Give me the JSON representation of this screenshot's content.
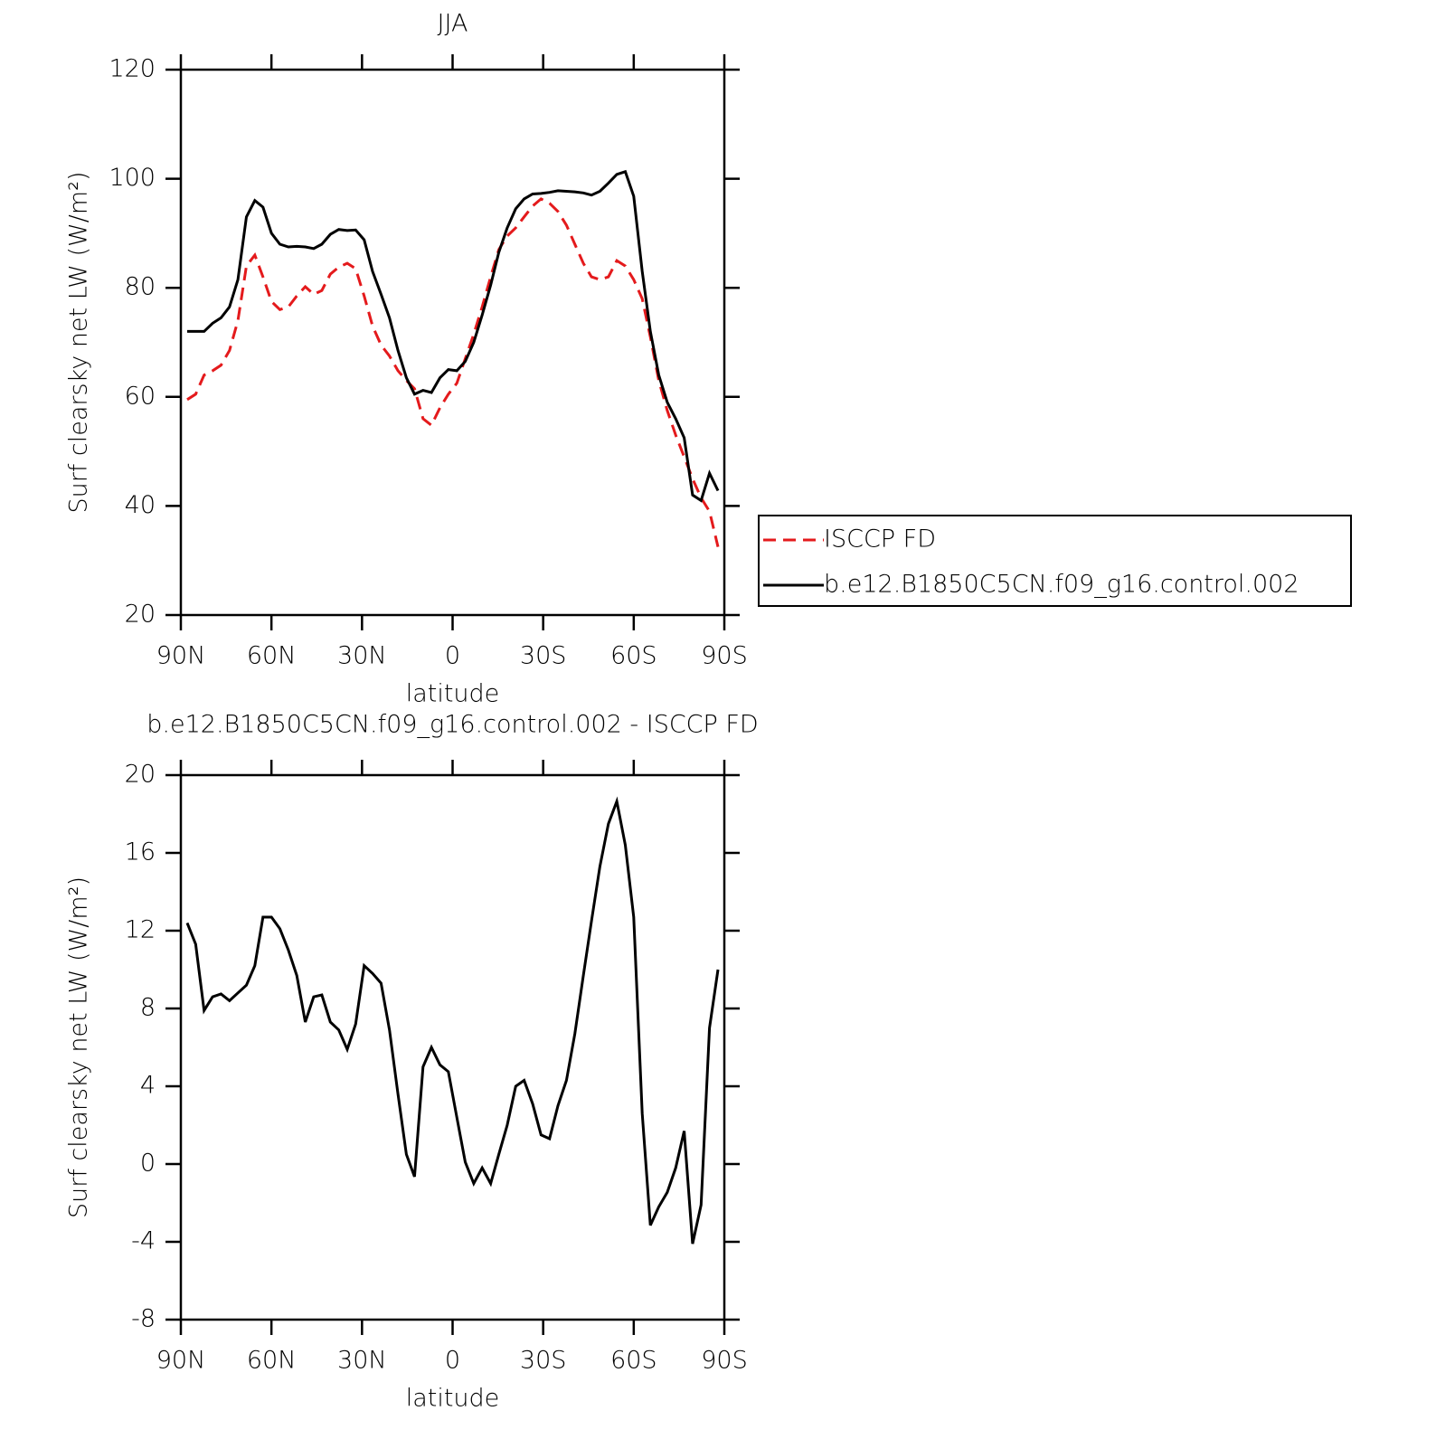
{
  "chart_data": [
    {
      "type": "line",
      "title": "JJA",
      "xlabel": "latitude",
      "ylabel": "Surf clearsky net LW (W/m²)",
      "x": [
        87.9,
        85.1,
        82.3,
        79.5,
        76.7,
        73.9,
        71.1,
        68.3,
        65.5,
        62.8,
        60.0,
        57.2,
        54.4,
        51.6,
        48.8,
        46.0,
        43.3,
        40.5,
        37.7,
        34.9,
        32.1,
        29.3,
        26.5,
        23.7,
        20.9,
        18.1,
        15.3,
        12.6,
        9.8,
        7.0,
        4.2,
        1.4,
        -1.4,
        -4.2,
        -7.0,
        -9.8,
        -12.6,
        -15.3,
        -18.1,
        -20.9,
        -23.7,
        -26.5,
        -29.3,
        -32.1,
        -34.9,
        -37.7,
        -40.5,
        -43.3,
        -46.0,
        -48.8,
        -51.6,
        -54.4,
        -57.2,
        -60.0,
        -62.8,
        -65.5,
        -68.3,
        -71.1,
        -73.9,
        -76.7,
        -79.5,
        -82.3,
        -85.1,
        -87.9
      ],
      "series": [
        {
          "name": "ISCCP FD",
          "color": "#e41a1c",
          "dash": true,
          "values": [
            59.5,
            60.5,
            64.0,
            64.8,
            65.8,
            68.5,
            74.0,
            84.0,
            86.0,
            82.0,
            77.5,
            76.0,
            76.5,
            78.5,
            80.2,
            78.8,
            79.5,
            82.5,
            83.8,
            84.5,
            83.5,
            78.5,
            73.0,
            69.5,
            67.5,
            64.8,
            63.0,
            61.5,
            56.0,
            54.8,
            58.0,
            60.5,
            62.5,
            67.0,
            71.5,
            76.5,
            82.0,
            87.0,
            89.5,
            91.0,
            93.0,
            95.0,
            96.3,
            95.5,
            94.0,
            91.5,
            88.0,
            84.5,
            82.0,
            81.5,
            82.0,
            85.0,
            84.0,
            81.5,
            78.0,
            71.0,
            63.0,
            57.5,
            53.0,
            49.0,
            45.0,
            41.5,
            39.0,
            32.5
          ]
        },
        {
          "name": "b.e12.B1850C5CN.f09_g16.control.002",
          "color": "#000000",
          "dash": false,
          "values": [
            72.0,
            72.0,
            72.0,
            73.5,
            74.5,
            76.5,
            81.5,
            93.0,
            96.0,
            94.8,
            90.0,
            88.0,
            87.5,
            87.6,
            87.5,
            87.2,
            88.0,
            89.8,
            90.7,
            90.5,
            90.6,
            88.8,
            83.0,
            78.8,
            74.5,
            68.5,
            63.5,
            60.5,
            61.2,
            60.8,
            63.5,
            65.0,
            64.8,
            66.5,
            70.0,
            75.0,
            80.5,
            86.5,
            91.0,
            94.5,
            96.3,
            97.2,
            97.3,
            97.5,
            97.8,
            97.7,
            97.6,
            97.4,
            97.0,
            97.7,
            99.2,
            100.8,
            101.3,
            96.8,
            83.0,
            72.0,
            64.0,
            59.0,
            56.0,
            52.5,
            42.0,
            41.0,
            46.0,
            42.8
          ]
        }
      ],
      "xlim": [
        90,
        -90
      ],
      "xticks": [
        {
          "value": 90,
          "label": "90N"
        },
        {
          "value": 60,
          "label": "60N"
        },
        {
          "value": 30,
          "label": "30N"
        },
        0,
        {
          "value": -30,
          "label": "30S"
        },
        {
          "value": -60,
          "label": "60S"
        },
        {
          "value": -90,
          "label": "90S"
        }
      ],
      "ylim": [
        20,
        120
      ],
      "yticks": [
        20,
        40,
        60,
        80,
        100,
        120
      ],
      "legend": "outside-right"
    },
    {
      "type": "line",
      "title": "b.e12.B1850C5CN.f09_g16.control.002 - ISCCP FD",
      "xlabel": "latitude",
      "ylabel": "Surf clearsky net LW (W/m²)",
      "x": [
        87.9,
        85.1,
        82.3,
        79.5,
        76.7,
        73.9,
        71.1,
        68.3,
        65.5,
        62.8,
        60.0,
        57.2,
        54.4,
        51.6,
        48.8,
        46.0,
        43.3,
        40.5,
        37.7,
        34.9,
        32.1,
        29.3,
        26.5,
        23.7,
        20.9,
        18.1,
        15.3,
        12.6,
        9.8,
        7.0,
        4.2,
        1.4,
        -1.4,
        -4.2,
        -7.0,
        -9.8,
        -12.6,
        -15.3,
        -18.1,
        -20.9,
        -23.7,
        -26.5,
        -29.3,
        -32.1,
        -34.9,
        -37.7,
        -40.5,
        -43.3,
        -46.0,
        -48.8,
        -51.6,
        -54.4,
        -57.2,
        -60.0,
        -62.8,
        -65.5,
        -68.3,
        -71.1,
        -73.9,
        -76.7,
        -79.5,
        -82.3,
        -85.1,
        -87.9
      ],
      "series": [
        {
          "color": "#000000",
          "dash": false,
          "values": [
            12.4,
            11.3,
            7.9,
            8.6,
            8.75,
            8.4,
            8.8,
            9.2,
            10.2,
            12.7,
            12.7,
            12.1,
            11.0,
            9.7,
            7.3,
            8.6,
            8.7,
            7.3,
            6.9,
            5.9,
            7.2,
            10.2,
            9.8,
            9.3,
            6.9,
            3.6,
            0.5,
            -0.65,
            5.0,
            6.0,
            5.1,
            4.75,
            2.4,
            0.1,
            -1.0,
            -0.2,
            -1.0,
            0.5,
            2.0,
            4.0,
            4.3,
            3.1,
            1.5,
            1.3,
            3.0,
            4.3,
            6.7,
            9.7,
            12.5,
            15.3,
            17.5,
            18.65,
            16.4,
            12.7,
            2.6,
            -3.15,
            -2.2,
            -1.45,
            -0.2,
            1.7,
            -4.1,
            -2.1,
            7.0,
            10.0
          ]
        }
      ],
      "xlim": [
        90,
        -90
      ],
      "xticks": [
        {
          "value": 90,
          "label": "90N"
        },
        {
          "value": 60,
          "label": "60N"
        },
        {
          "value": 30,
          "label": "30N"
        },
        0,
        {
          "value": -30,
          "label": "30S"
        },
        {
          "value": -60,
          "label": "60S"
        },
        {
          "value": -90,
          "label": "90S"
        }
      ],
      "ylim": [
        -8,
        20
      ],
      "yticks": [
        -8,
        -4,
        0,
        4,
        8,
        12,
        16,
        20
      ]
    }
  ]
}
